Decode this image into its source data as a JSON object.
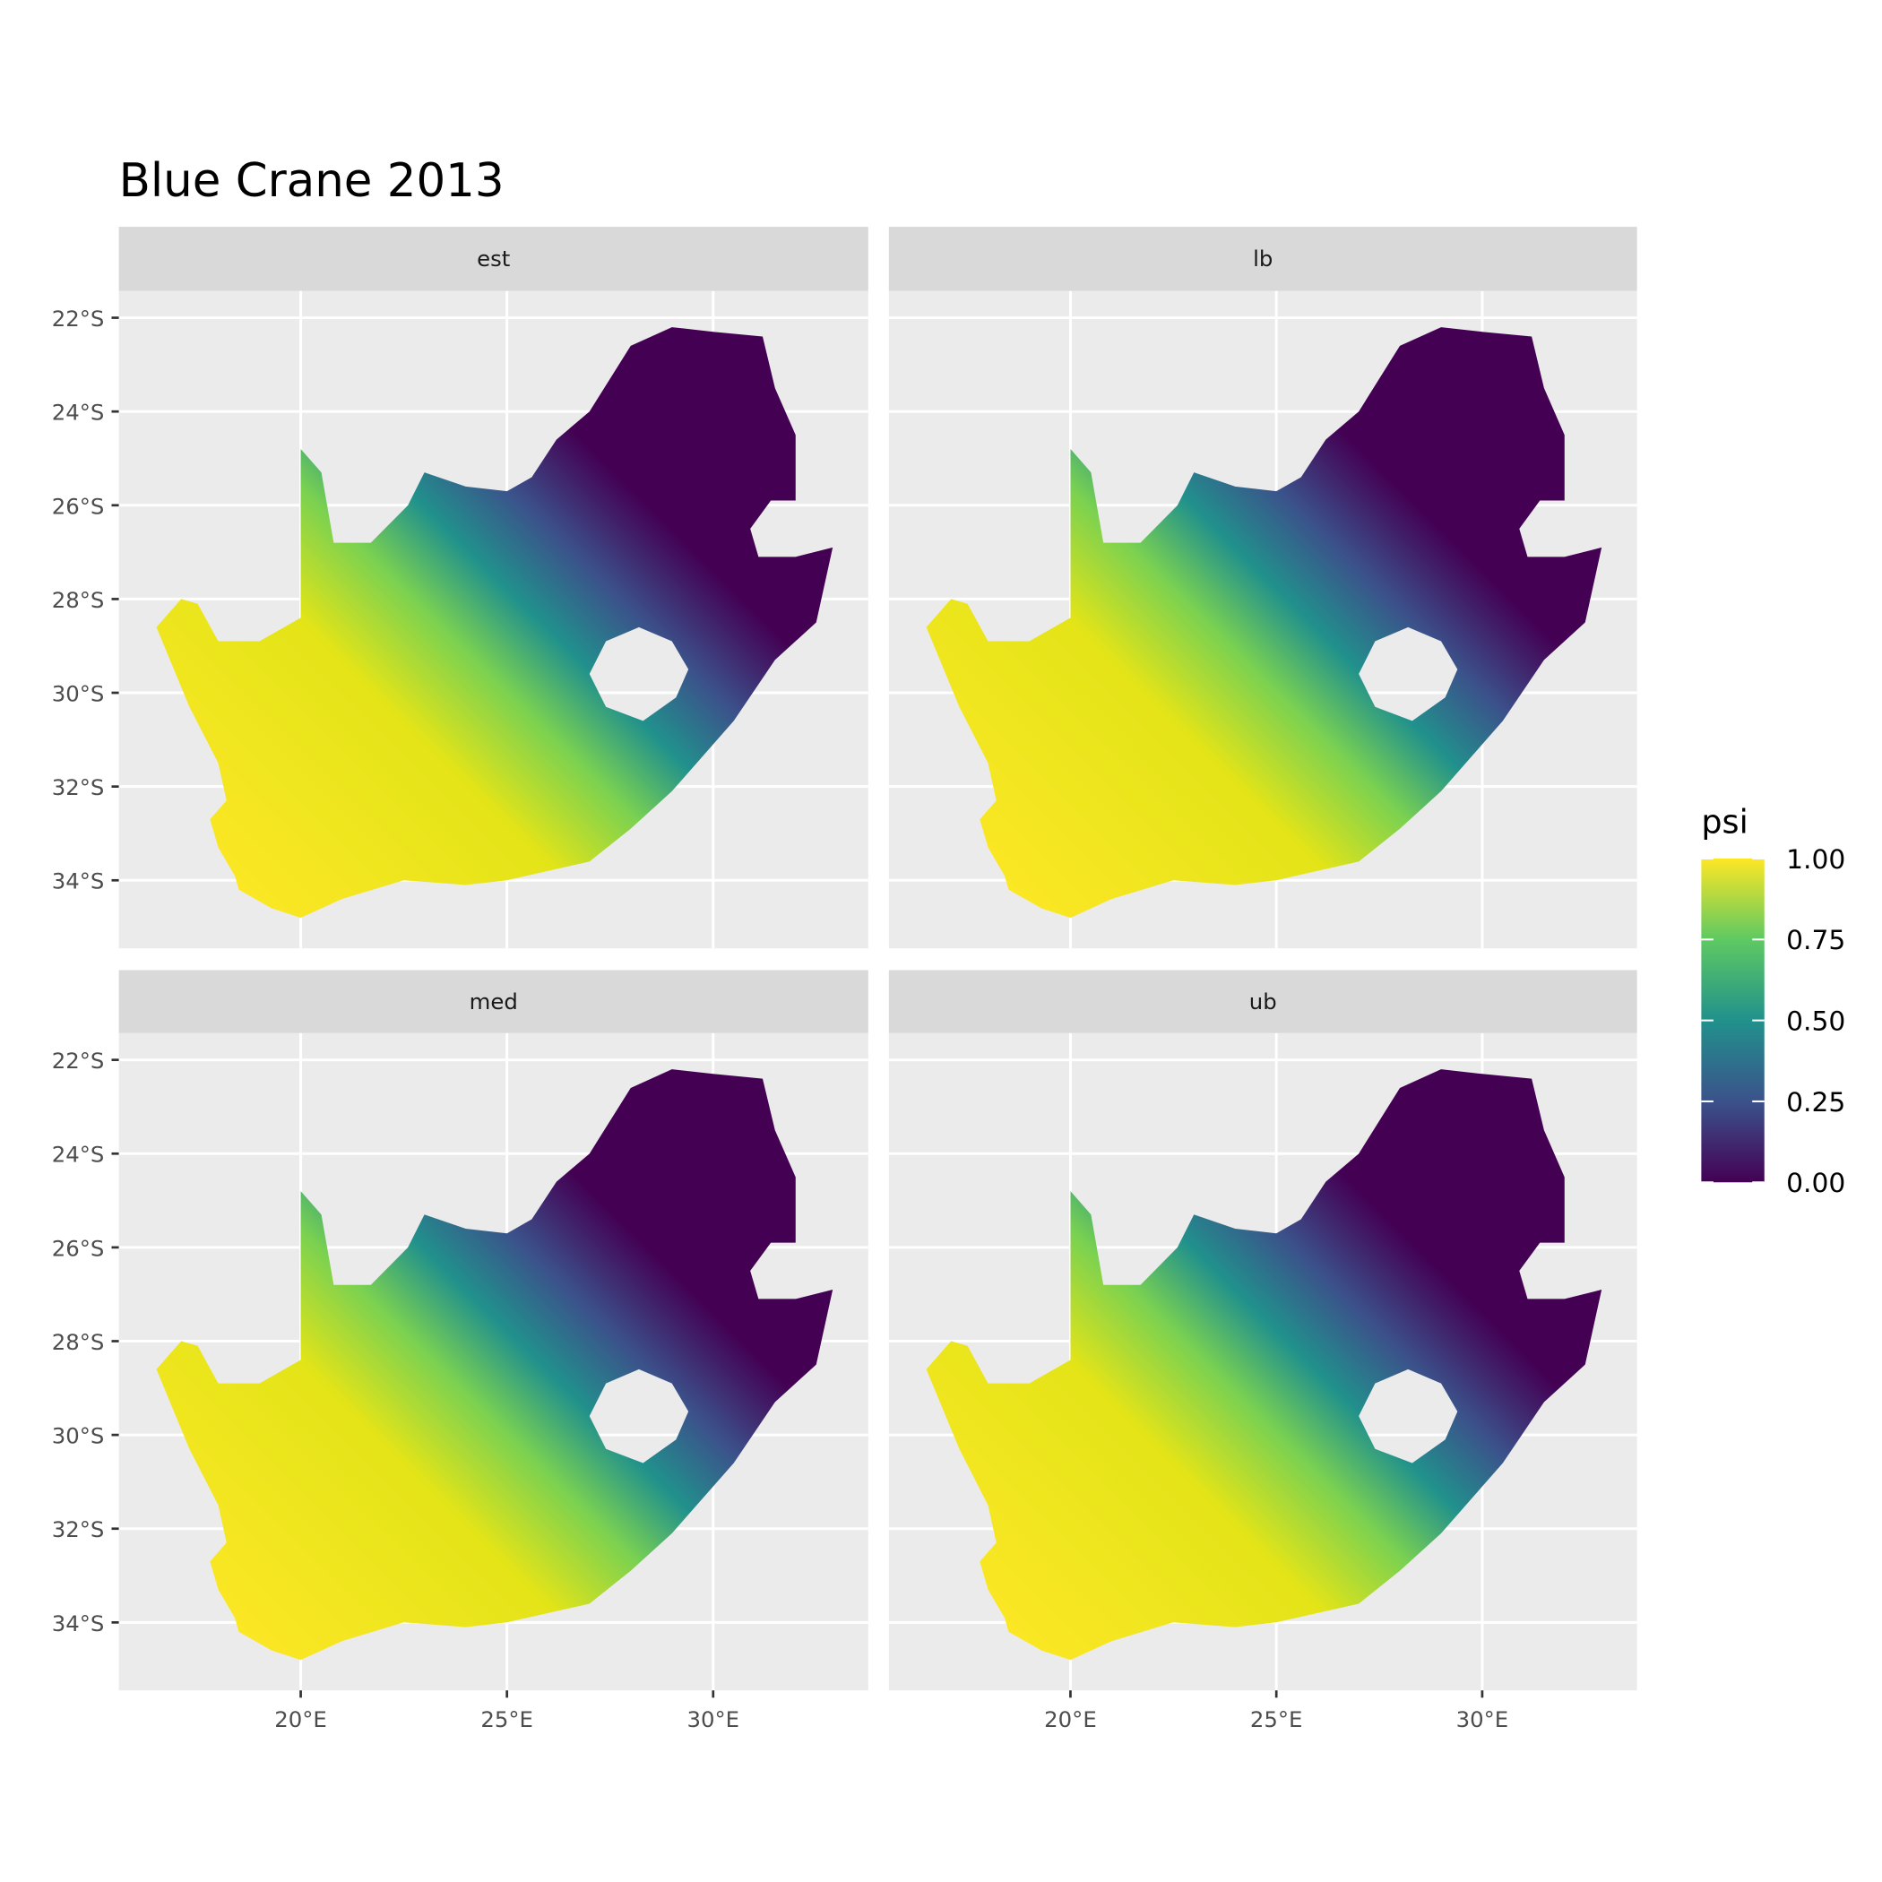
{
  "chart_data": {
    "type": "map",
    "title": "Blue Crane 2013",
    "facets": [
      "est",
      "lb",
      "med",
      "ub"
    ],
    "xlim": [
      15.59,
      33.76
    ],
    "ylim": [
      -35.45,
      -21.43
    ],
    "xticks": [
      {
        "value": 20,
        "label": "20°E"
      },
      {
        "value": 25,
        "label": "25°E"
      },
      {
        "value": 30,
        "label": "30°E"
      }
    ],
    "yticks": [
      {
        "value": -22,
        "label": "22°S"
      },
      {
        "value": -24,
        "label": "24°S"
      },
      {
        "value": -26,
        "label": "26°S"
      },
      {
        "value": -28,
        "label": "28°S"
      },
      {
        "value": -30,
        "label": "30°S"
      },
      {
        "value": -32,
        "label": "32°S"
      },
      {
        "value": -34,
        "label": "34°S"
      }
    ],
    "grid": true,
    "legend": {
      "title": "psi",
      "lim": [
        0,
        1
      ],
      "ticks": [
        {
          "value": 0,
          "label": "0.00"
        },
        {
          "value": 0.25,
          "label": "0.25"
        },
        {
          "value": 0.5,
          "label": "0.50"
        },
        {
          "value": 0.75,
          "label": "0.75"
        },
        {
          "value": 1,
          "label": "1.00"
        }
      ]
    }
  }
}
